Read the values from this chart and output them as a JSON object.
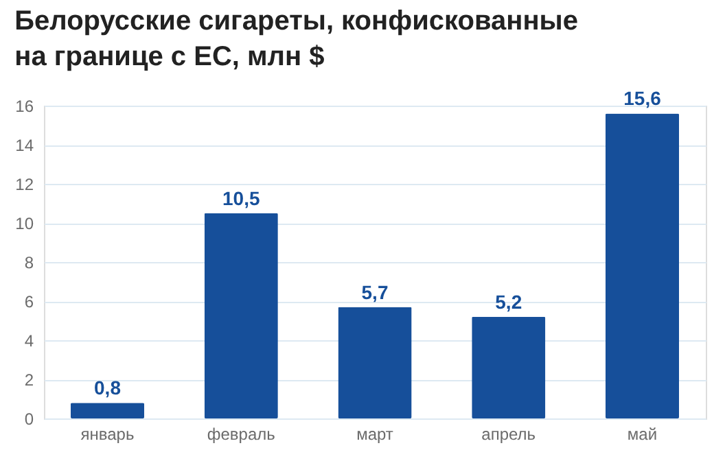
{
  "chart_data": {
    "type": "bar",
    "title": "Белорусские сигареты, конфискованные\nна границе с ЕС, млн $",
    "categories": [
      "январь",
      "февраль",
      "март",
      "апрель",
      "май"
    ],
    "values": [
      0.8,
      10.5,
      5.7,
      5.2,
      15.6
    ],
    "value_labels": [
      "0,8",
      "10,5",
      "5,7",
      "5,2",
      "15,6"
    ],
    "color": "#164f9a",
    "ylim": [
      0,
      16
    ],
    "yticks": [
      0,
      2,
      4,
      6,
      8,
      10,
      12,
      14,
      16
    ],
    "grid": "y"
  }
}
